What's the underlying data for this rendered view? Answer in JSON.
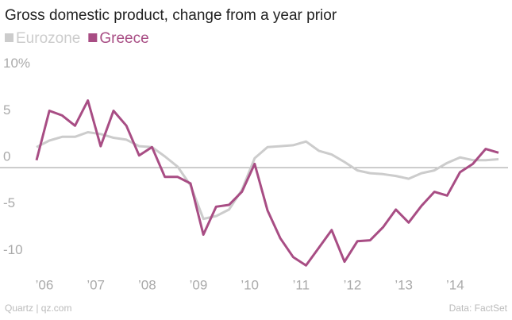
{
  "chart_data": {
    "type": "line",
    "title": "Gross domestic product, change from a year prior",
    "categories": [
      "’06",
      null,
      null,
      null,
      "’07",
      null,
      null,
      null,
      "’08",
      null,
      null,
      null,
      "’09",
      null,
      null,
      null,
      "’10",
      null,
      null,
      null,
      "’11",
      null,
      null,
      null,
      "’12",
      null,
      null,
      null,
      "’13",
      null,
      null,
      null,
      "’14",
      null,
      null,
      null,
      null
    ],
    "series": [
      {
        "name": "Eurozone",
        "color": "#cccccc",
        "values": [
          2.2,
          2.9,
          3.3,
          3.3,
          3.8,
          3.6,
          3.2,
          3.0,
          2.3,
          2.2,
          1.2,
          0.1,
          -1.9,
          -5.5,
          -5.2,
          -4.5,
          -2.4,
          1.0,
          2.2,
          2.3,
          2.4,
          2.8,
          1.8,
          1.4,
          0.6,
          -0.3,
          -0.6,
          -0.7,
          -0.9,
          -1.2,
          -0.6,
          -0.3,
          0.5,
          1.1,
          0.8,
          0.8,
          0.9
        ]
      },
      {
        "name": "Greece",
        "color": "#a84d84",
        "values": [
          0.8,
          6.1,
          5.6,
          4.5,
          7.2,
          2.3,
          6.1,
          4.5,
          1.3,
          2.2,
          -1.0,
          -1.0,
          -1.7,
          -7.2,
          -4.2,
          -4.0,
          -2.6,
          0.4,
          -4.6,
          -7.6,
          -9.6,
          -10.5,
          -8.6,
          -6.7,
          -10.1,
          -7.9,
          -7.8,
          -6.4,
          -4.5,
          -5.9,
          -4.1,
          -2.6,
          -3.0,
          -0.5,
          0.4,
          2.0,
          1.6
        ]
      }
    ],
    "ylim": [
      -11.5,
      11
    ],
    "yticks": [
      {
        "value": 10,
        "label": "10%"
      },
      5,
      0,
      -5,
      -10
    ],
    "source": "Data: FactSet",
    "credit": "Quartz | qz.com"
  }
}
